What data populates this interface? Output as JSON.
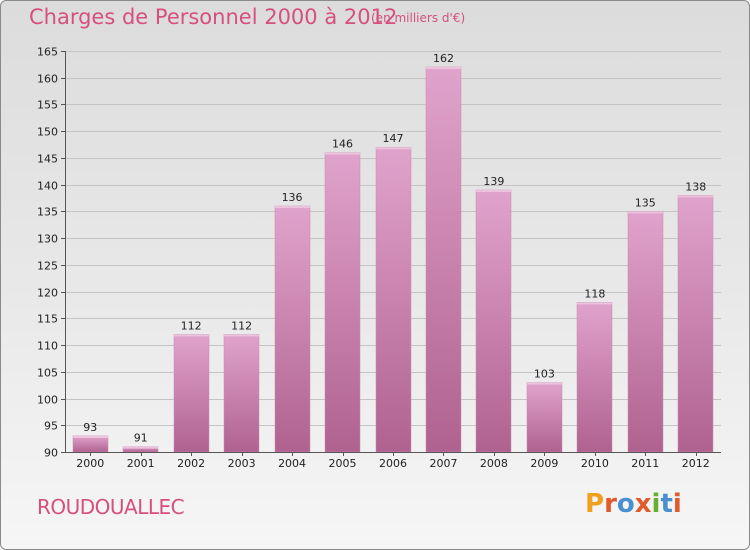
{
  "header": {
    "title": "Charges de Personnel 2000 à 2012",
    "unit": "(en milliers d'€)"
  },
  "footer": {
    "commune": "ROUDOUALLEC",
    "logo_text": "Proxiti"
  },
  "colors": {
    "accent": "#d64f7f",
    "bar_top": "#e0a3cc",
    "bar_bottom": "#b0628f",
    "logo_letters": [
      "#f0a020",
      "#e05a2a",
      "#4a90d0",
      "#e05a2a",
      "#66b030",
      "#4a90d0",
      "#e05a2a"
    ]
  },
  "chart_data": {
    "type": "bar",
    "title": "Charges de Personnel 2000 à 2012",
    "subtitle": "(en milliers d'€)",
    "categories": [
      "2000",
      "2001",
      "2002",
      "2003",
      "2004",
      "2005",
      "2006",
      "2007",
      "2008",
      "2009",
      "2010",
      "2011",
      "2012"
    ],
    "values": [
      93,
      91,
      112,
      112,
      136,
      146,
      147,
      162,
      139,
      103,
      118,
      135,
      138
    ],
    "ylim": [
      90,
      165
    ],
    "yticks": [
      90,
      95,
      100,
      105,
      110,
      115,
      120,
      125,
      130,
      135,
      140,
      145,
      150,
      155,
      160,
      165
    ],
    "grid": true,
    "data_labels": true
  }
}
